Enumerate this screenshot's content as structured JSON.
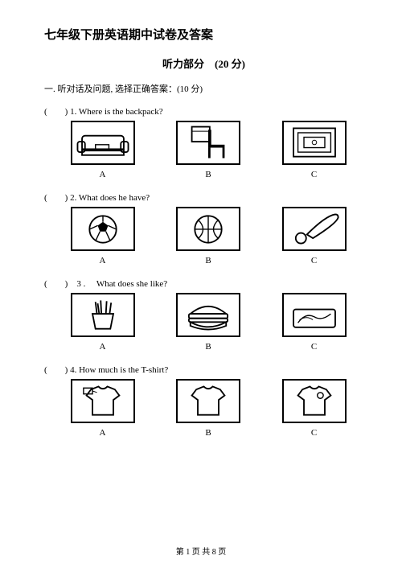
{
  "title": "七年级下册英语期中试卷及答案",
  "section_header": "听力部分　(20 分)",
  "instruction": "一.  听对话及问题, 选择正确答案：(10 分)",
  "questions": [
    {
      "prefix": "(　　) 1.",
      "text": "Where is the backpack?",
      "options": [
        {
          "label": "A",
          "icon": "sofa"
        },
        {
          "label": "B",
          "icon": "chair"
        },
        {
          "label": "C",
          "icon": "picture-frame"
        }
      ]
    },
    {
      "prefix": " (　　) 2.",
      "text": "What does he have?",
      "options": [
        {
          "label": "A",
          "icon": "soccer"
        },
        {
          "label": "B",
          "icon": "basketball"
        },
        {
          "label": "C",
          "icon": "bat-ball"
        }
      ]
    },
    {
      "prefix": "(　　)　3 .　",
      "text": "What does she like?",
      "options": [
        {
          "label": "A",
          "icon": "fries"
        },
        {
          "label": "B",
          "icon": "burger"
        },
        {
          "label": "C",
          "icon": "tray"
        }
      ]
    },
    {
      "prefix": "(　　) 4.",
      "text": "How much is the T-shirt?",
      "options": [
        {
          "label": "A",
          "icon": "tshirt-tag"
        },
        {
          "label": "B",
          "icon": "tshirt"
        },
        {
          "label": "C",
          "icon": "tshirt-badge"
        }
      ]
    }
  ],
  "footer": {
    "prefix": "第 ",
    "current": "1",
    "mid": " 页 共 ",
    "total": "8",
    "suffix": " 页"
  },
  "style": {
    "background": "#ffffff",
    "text_color": "#000000",
    "border_color": "#000000",
    "title_fontsize": 15,
    "body_fontsize": 11,
    "imgbox_w": 80,
    "imgbox_h": 55
  }
}
